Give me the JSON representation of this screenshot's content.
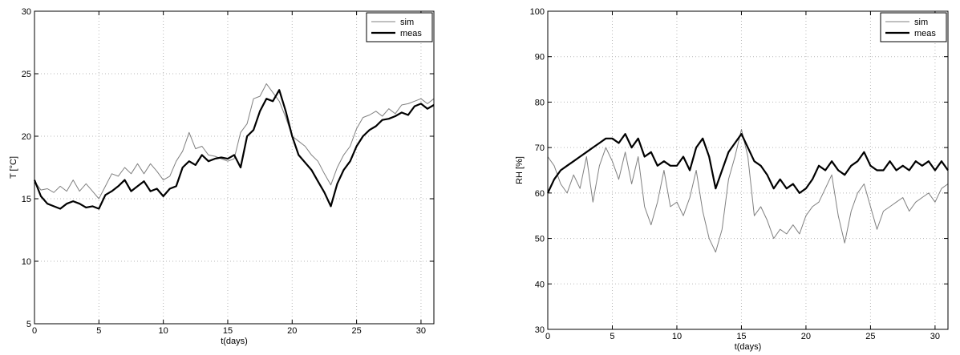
{
  "chart_data": [
    {
      "type": "line",
      "title": "",
      "xlabel": "t(days)",
      "ylabel": "T [°C]",
      "xlim": [
        0,
        31
      ],
      "ylim": [
        5,
        30
      ],
      "xticks": [
        0,
        5,
        10,
        15,
        20,
        25,
        30
      ],
      "yticks": [
        5,
        10,
        15,
        20,
        25,
        30
      ],
      "xtick_labels": [
        "0",
        "5",
        "10",
        "15",
        "20",
        "25",
        "30"
      ],
      "ytick_labels": [
        "5",
        "10",
        "15",
        "20",
        "25",
        "30"
      ],
      "grid": true,
      "legend_position": "top-right",
      "series": [
        {
          "name": "sim",
          "color": "#808080",
          "x": [
            0,
            0.5,
            1,
            1.5,
            2,
            2.5,
            3,
            3.5,
            4,
            4.5,
            5,
            5.5,
            6,
            6.5,
            7,
            7.5,
            8,
            8.5,
            9,
            9.5,
            10,
            10.5,
            11,
            11.5,
            12,
            12.5,
            13,
            13.5,
            14,
            14.5,
            15,
            15.5,
            16,
            16.5,
            17,
            17.5,
            18,
            18.5,
            19,
            19.5,
            20,
            20.5,
            21,
            21.5,
            22,
            22.5,
            23,
            23.5,
            24,
            24.5,
            25,
            25.5,
            26,
            26.5,
            27,
            27.5,
            28,
            28.5,
            29,
            29.5,
            30,
            30.5,
            31
          ],
          "values": [
            16.4,
            15.7,
            15.8,
            15.5,
            16.0,
            15.6,
            16.5,
            15.6,
            16.2,
            15.6,
            15.0,
            16.0,
            17.0,
            16.8,
            17.5,
            17.0,
            17.8,
            17.0,
            17.8,
            17.2,
            16.5,
            16.8,
            18.0,
            18.8,
            20.3,
            19.0,
            19.2,
            18.5,
            18.4,
            18.2,
            18.0,
            18.2,
            20.3,
            21.0,
            23.0,
            23.2,
            24.2,
            23.5,
            22.8,
            21.5,
            20.0,
            19.6,
            19.2,
            18.5,
            18.0,
            17.0,
            16.1,
            17.5,
            18.5,
            19.2,
            20.6,
            21.5,
            21.7,
            22.0,
            21.6,
            22.2,
            21.8,
            22.5,
            22.6,
            22.8,
            23.0,
            22.6,
            23.0
          ]
        },
        {
          "name": "meas",
          "color": "#000000",
          "x": [
            0,
            0.5,
            1,
            1.5,
            2,
            2.5,
            3,
            3.5,
            4,
            4.5,
            5,
            5.5,
            6,
            6.5,
            7,
            7.5,
            8,
            8.5,
            9,
            9.5,
            10,
            10.5,
            11,
            11.5,
            12,
            12.5,
            13,
            13.5,
            14,
            14.5,
            15,
            15.5,
            16,
            16.5,
            17,
            17.5,
            18,
            18.5,
            19,
            19.5,
            20,
            20.5,
            21,
            21.5,
            22,
            22.5,
            23,
            23.5,
            24,
            24.5,
            25,
            25.5,
            26,
            26.5,
            27,
            27.5,
            28,
            28.5,
            29,
            29.5,
            30,
            30.5,
            31
          ],
          "values": [
            16.5,
            15.2,
            14.6,
            14.4,
            14.2,
            14.6,
            14.8,
            14.6,
            14.3,
            14.4,
            14.2,
            15.3,
            15.6,
            16.0,
            16.5,
            15.6,
            16.0,
            16.4,
            15.6,
            15.8,
            15.2,
            15.8,
            16.0,
            17.5,
            18.0,
            17.7,
            18.5,
            18.0,
            18.2,
            18.3,
            18.2,
            18.5,
            17.5,
            20.0,
            20.5,
            22.0,
            23.0,
            22.8,
            23.7,
            22.0,
            20.0,
            18.5,
            17.9,
            17.3,
            16.4,
            15.5,
            14.4,
            16.2,
            17.3,
            18.0,
            19.2,
            20.0,
            20.5,
            20.8,
            21.3,
            21.4,
            21.6,
            21.9,
            21.7,
            22.4,
            22.6,
            22.2,
            22.5
          ]
        }
      ]
    },
    {
      "type": "line",
      "title": "",
      "xlabel": "t(days)",
      "ylabel": "RH [%]",
      "xlim": [
        0,
        31
      ],
      "ylim": [
        30,
        100
      ],
      "xticks": [
        0,
        5,
        10,
        15,
        20,
        25,
        30
      ],
      "yticks": [
        30,
        40,
        50,
        60,
        70,
        80,
        90,
        100
      ],
      "xtick_labels": [
        "0",
        "5",
        "10",
        "15",
        "20",
        "25",
        "30"
      ],
      "ytick_labels": [
        "30",
        "40",
        "50",
        "60",
        "70",
        "80",
        "90",
        "100"
      ],
      "grid": true,
      "legend_position": "top-right",
      "series": [
        {
          "name": "sim",
          "color": "#808080",
          "x": [
            0,
            0.5,
            1,
            1.5,
            2,
            2.5,
            3,
            3.5,
            4,
            4.5,
            5,
            5.5,
            6,
            6.5,
            7,
            7.5,
            8,
            8.5,
            9,
            9.5,
            10,
            10.5,
            11,
            11.5,
            12,
            12.5,
            13,
            13.5,
            14,
            14.5,
            15,
            15.5,
            16,
            16.5,
            17,
            17.5,
            18,
            18.5,
            19,
            19.5,
            20,
            20.5,
            21,
            21.5,
            22,
            22.5,
            23,
            23.5,
            24,
            24.5,
            25,
            25.5,
            26,
            26.5,
            27,
            27.5,
            28,
            28.5,
            29,
            29.5,
            30,
            30.5,
            31
          ],
          "values": [
            68,
            66,
            62,
            60,
            64,
            61,
            68,
            58,
            66,
            70,
            67,
            63,
            69,
            62,
            68,
            57,
            53,
            58,
            65,
            57,
            58,
            55,
            59,
            65,
            56,
            50,
            47,
            52,
            63,
            68,
            74,
            68,
            55,
            57,
            54,
            50,
            52,
            51,
            53,
            51,
            55,
            57,
            58,
            61,
            64,
            55,
            49,
            56,
            60,
            62,
            57,
            52,
            56,
            57,
            58,
            59,
            56,
            58,
            59,
            60,
            58,
            61,
            62
          ]
        },
        {
          "name": "meas",
          "color": "#000000",
          "x": [
            0,
            0.5,
            1,
            1.5,
            2,
            2.5,
            3,
            3.5,
            4,
            4.5,
            5,
            5.5,
            6,
            6.5,
            7,
            7.5,
            8,
            8.5,
            9,
            9.5,
            10,
            10.5,
            11,
            11.5,
            12,
            12.5,
            13,
            13.5,
            14,
            14.5,
            15,
            15.5,
            16,
            16.5,
            17,
            17.5,
            18,
            18.5,
            19,
            19.5,
            20,
            20.5,
            21,
            21.5,
            22,
            22.5,
            23,
            23.5,
            24,
            24.5,
            25,
            25.5,
            26,
            26.5,
            27,
            27.5,
            28,
            28.5,
            29,
            29.5,
            30,
            30.5,
            31
          ],
          "values": [
            60,
            63,
            65,
            66,
            67,
            68,
            69,
            70,
            71,
            72,
            72,
            71,
            73,
            70,
            72,
            68,
            69,
            66,
            67,
            66,
            66,
            68,
            65,
            70,
            72,
            68,
            61,
            65,
            69,
            71,
            73,
            70,
            67,
            66,
            64,
            61,
            63,
            61,
            62,
            60,
            61,
            63,
            66,
            65,
            67,
            65,
            64,
            66,
            67,
            69,
            66,
            65,
            65,
            67,
            65,
            66,
            65,
            67,
            66,
            67,
            65,
            67,
            65
          ]
        }
      ]
    }
  ]
}
